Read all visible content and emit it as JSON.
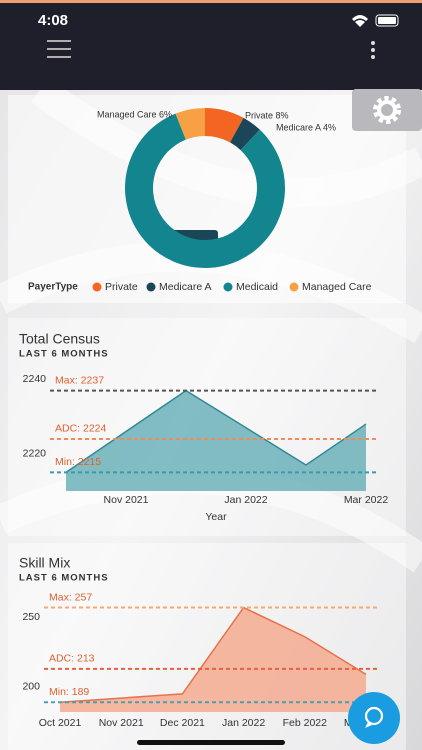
{
  "status_bar": {
    "time": "4:08"
  },
  "chart_data": [
    {
      "type": "pie",
      "legend_title": "PayerType",
      "categories": [
        "Private",
        "Medicare A",
        "Medicaid",
        "Managed Care"
      ],
      "values": [
        8,
        4,
        82,
        6
      ],
      "value_labels": [
        "Private 8%",
        "Medicare A 4%",
        null,
        "Managed Care 6%"
      ],
      "colors": [
        "#f26522",
        "#1b4658",
        "#13858f",
        "#f7a044"
      ]
    },
    {
      "type": "area",
      "title": "Total Census",
      "subtitle": "LAST 6 MONTHS",
      "x_label": "Year",
      "categories": [
        null,
        "Nov 2021",
        null,
        "Jan 2022",
        null,
        "Mar 2022"
      ],
      "values": [
        2215,
        2226,
        2237,
        2227,
        2217,
        2228
      ],
      "color": "#2f8a96",
      "fill": "#5aa8b2",
      "ylim": [
        2210,
        2242
      ],
      "yticks": [
        2220,
        2240
      ],
      "reference_lines": [
        {
          "label": "Max: 2237",
          "value": 2237,
          "color": "#555555"
        },
        {
          "label": "ADC: 2224",
          "value": 2224,
          "color": "#f08a5d"
        },
        {
          "label": "Min: 2215",
          "value": 2215,
          "color": "#3a9aa5"
        }
      ]
    },
    {
      "type": "area",
      "title": "Skill Mix",
      "subtitle": "LAST 6 MONTHS",
      "categories": [
        "Oct 2021",
        "Nov 2021",
        "Dec 2021",
        "Jan 2022",
        "Feb 2022",
        "Mar 2022"
      ],
      "values": [
        189,
        192,
        195,
        257,
        236,
        209
      ],
      "color": "#e8724a",
      "fill": "#f4a183",
      "ylim": [
        182,
        266
      ],
      "yticks": [
        200,
        250
      ],
      "reference_lines": [
        {
          "label": "Max: 257",
          "value": 257,
          "color": "#f7a86f"
        },
        {
          "label": "ADC: 213",
          "value": 213,
          "color": "#e8603c"
        },
        {
          "label": "Min: 189",
          "value": 189,
          "color": "#4d9fb0"
        }
      ]
    }
  ]
}
